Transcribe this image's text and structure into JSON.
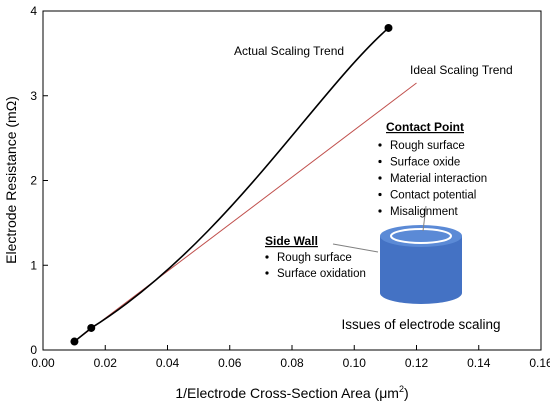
{
  "chart_data": {
    "type": "line",
    "xlabel_main": "1/Electrode Cross-Section Area (",
    "xlabel_unit": "μm",
    "xlabel_sup": "2",
    "xlabel_close": ")",
    "ylabel": "Electrode Resistance (mΩ)",
    "xlim": [
      0.0,
      0.16
    ],
    "ylim": [
      0,
      4
    ],
    "x_ticks": [
      "0.00",
      "0.02",
      "0.04",
      "0.06",
      "0.08",
      "0.10",
      "0.12",
      "0.14",
      "0.16"
    ],
    "y_ticks": [
      "0",
      "1",
      "2",
      "3",
      "4"
    ],
    "grid": false,
    "series": [
      {
        "name": "Actual Scaling Trend",
        "color": "#000000",
        "x": [
          0.0101,
          0.0155,
          0.111
        ],
        "y": [
          0.1,
          0.26,
          3.8
        ],
        "markers": true
      },
      {
        "name": "Ideal Scaling Trend",
        "color": "#c0504d",
        "x": [
          0.0101,
          0.12
        ],
        "y": [
          0.1,
          3.15
        ],
        "markers": false
      }
    ]
  },
  "annotations": {
    "contact_point": {
      "title": "Contact Point",
      "items": [
        "Rough surface",
        "Surface oxide",
        "Material interaction",
        "Contact potential",
        "Misalignment"
      ]
    },
    "side_wall": {
      "title": "Side Wall",
      "items": [
        "Rough surface",
        "Surface oxidation"
      ]
    },
    "caption": "Issues of electrode scaling",
    "cylinder_color": "#4472c4"
  }
}
